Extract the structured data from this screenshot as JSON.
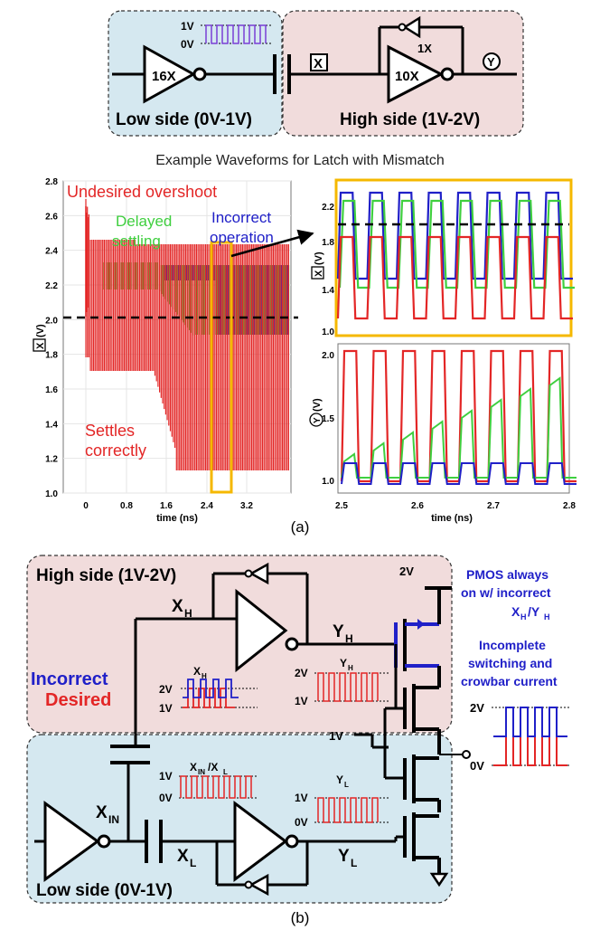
{
  "top": {
    "low_side_label": "Low side (0V-1V)",
    "high_side_label": "High side (1V-2V)",
    "wave_high": "1V",
    "wave_low": "0V",
    "inv_16x": "16X",
    "inv_10x": "10X",
    "inv_1x": "1X",
    "node_x": "X",
    "node_y": "Y"
  },
  "caption_top": "Example Waveforms for Latch with Mismatch",
  "plot_left": {
    "ylabel_node": "X",
    "ylabel_unit": "(V)",
    "xlabel": "time (ns)",
    "yticks": [
      "2.8",
      "2.6",
      "2.4",
      "2.2",
      "2.0",
      "1.8",
      "1.6",
      "1.4",
      "1.2",
      "1.0"
    ],
    "xticks": [
      "0",
      "0.8",
      "1.6",
      "2.4",
      "3.2"
    ],
    "ann_overshoot": "Undesired overshoot",
    "ann_delayed_1": "Delayed",
    "ann_delayed_2": "settling",
    "ann_incorrect_1": "Incorrect",
    "ann_incorrect_2": "operation",
    "ann_settles_1": "Settles",
    "ann_settles_2": "correctly"
  },
  "plot_right_top": {
    "ylabel_node": "X",
    "ylabel_unit": "(V)",
    "yticks": [
      "2.2",
      "1.8",
      "1.4",
      "1.0"
    ]
  },
  "plot_right_bottom": {
    "ylabel_node": "Y",
    "ylabel_unit": "(V)",
    "yticks": [
      "2.0",
      "1.5",
      "1.0"
    ],
    "xticks": [
      "2.5",
      "2.6",
      "2.7",
      "2.8"
    ],
    "xlabel": "time (ns)"
  },
  "caption_a": "(a)",
  "bottom": {
    "high_side_label": "High side (1V-2V)",
    "low_side_label": "Low side (0V-1V)",
    "xh": "X",
    "xh_sub": "H",
    "yh": "Y",
    "yh_sub": "H",
    "xl": "X",
    "xl_sub": "L",
    "yl": "Y",
    "yl_sub": "L",
    "xin": "X",
    "xin_sub": "IN",
    "incorrect": "Incorrect",
    "desired": "Desired",
    "w_xh_title": "X",
    "w_xh_sub": "H",
    "w_yh_title": "Y",
    "w_yh_sub": "H",
    "w_yl_title": "Y",
    "w_yl_sub": "L",
    "w_xin_a": "X",
    "w_xin_a_sub": "IN",
    "w_xin_slash": "/X",
    "w_xin_b_sub": "L",
    "v2": "2V",
    "v1": "1V",
    "v0": "0V",
    "pmos_1": "PMOS always",
    "pmos_2": "on w/ incorrect",
    "pmos_3": "X",
    "pmos_3_sub": "H",
    "pmos_3b": "/Y",
    "pmos_3b_sub": "H",
    "incomplete_1": "Incomplete",
    "incomplete_2": "switching and",
    "incomplete_3": "crowbar current",
    "vdd": "2V",
    "vmid": "1V"
  },
  "caption_b": "(b)",
  "colors": {
    "red": "#e32626",
    "green": "#3fcf3f",
    "blue": "#2020c8",
    "orange": "#f5b800",
    "pink": "#f1dcdc",
    "lightblue": "#d5e8f0"
  }
}
